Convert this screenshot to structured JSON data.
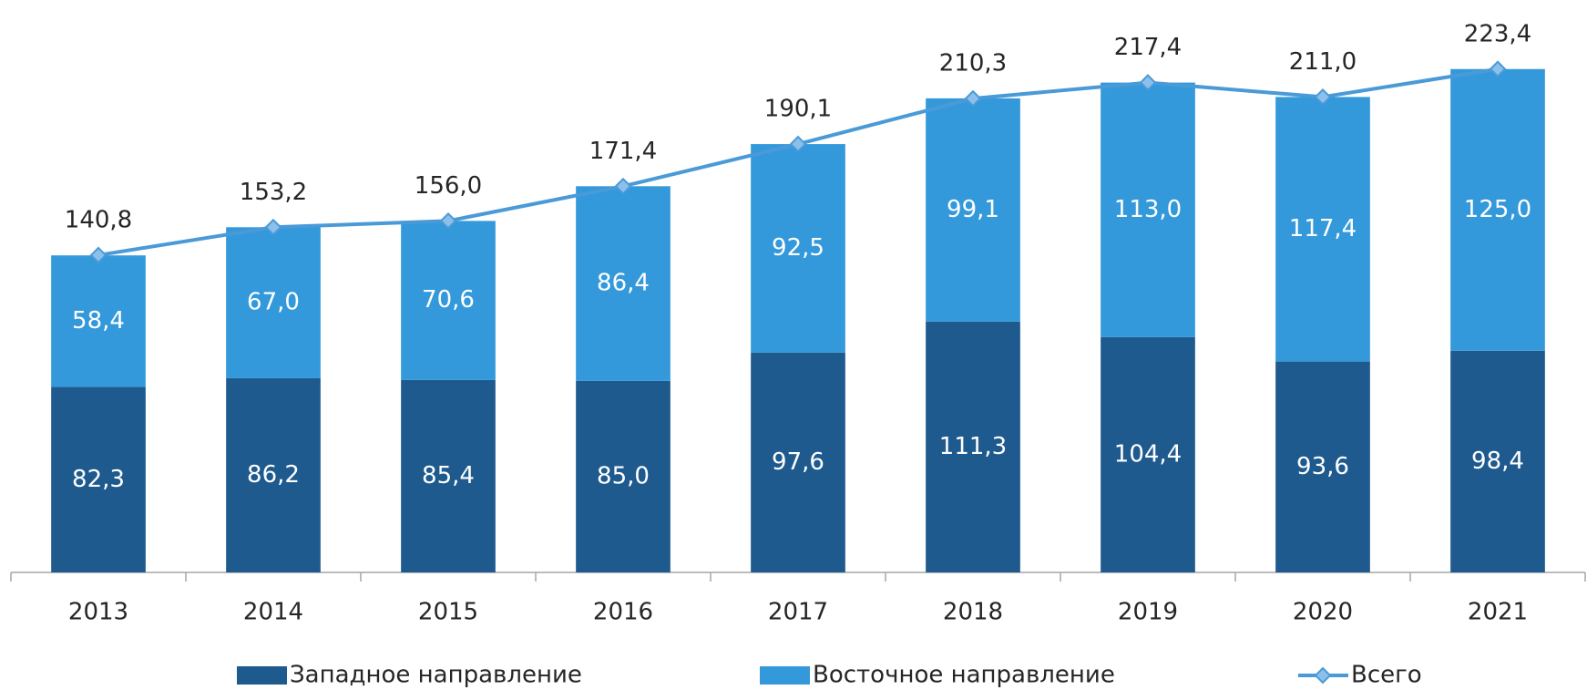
{
  "chart_data": {
    "type": "bar",
    "stacked": true,
    "categories": [
      "2013",
      "2014",
      "2015",
      "2016",
      "2017",
      "2018",
      "2019",
      "2020",
      "2021"
    ],
    "series": [
      {
        "name": "Западное направление",
        "type": "bar",
        "color": "#1f5a8e",
        "values": [
          82.3,
          86.2,
          85.4,
          85.0,
          97.6,
          111.3,
          104.4,
          93.6,
          98.4
        ],
        "value_labels": [
          "82,3",
          "86,2",
          "85,4",
          "85,0",
          "97,6",
          "111,3",
          "104,4",
          "93,6",
          "98,4"
        ]
      },
      {
        "name": "Восточное направление",
        "type": "bar",
        "color": "#3399db",
        "values": [
          58.4,
          67.0,
          70.6,
          86.4,
          92.5,
          99.1,
          113.0,
          117.4,
          125.0
        ],
        "value_labels": [
          "58,4",
          "67,0",
          "70,6",
          "86,4",
          "92,5",
          "99,1",
          "113,0",
          "117,4",
          "125,0"
        ]
      },
      {
        "name": "Всего",
        "type": "line",
        "color": "#4a9ad8",
        "values": [
          140.8,
          153.2,
          156.0,
          171.4,
          190.1,
          210.3,
          217.4,
          211.0,
          223.4
        ],
        "value_labels": [
          "140,8",
          "153,2",
          "156,0",
          "171,4",
          "190,1",
          "210,3",
          "217,4",
          "211,0",
          "223,4"
        ]
      }
    ],
    "ylim": [
      0,
      250
    ],
    "legend": "bottom"
  }
}
